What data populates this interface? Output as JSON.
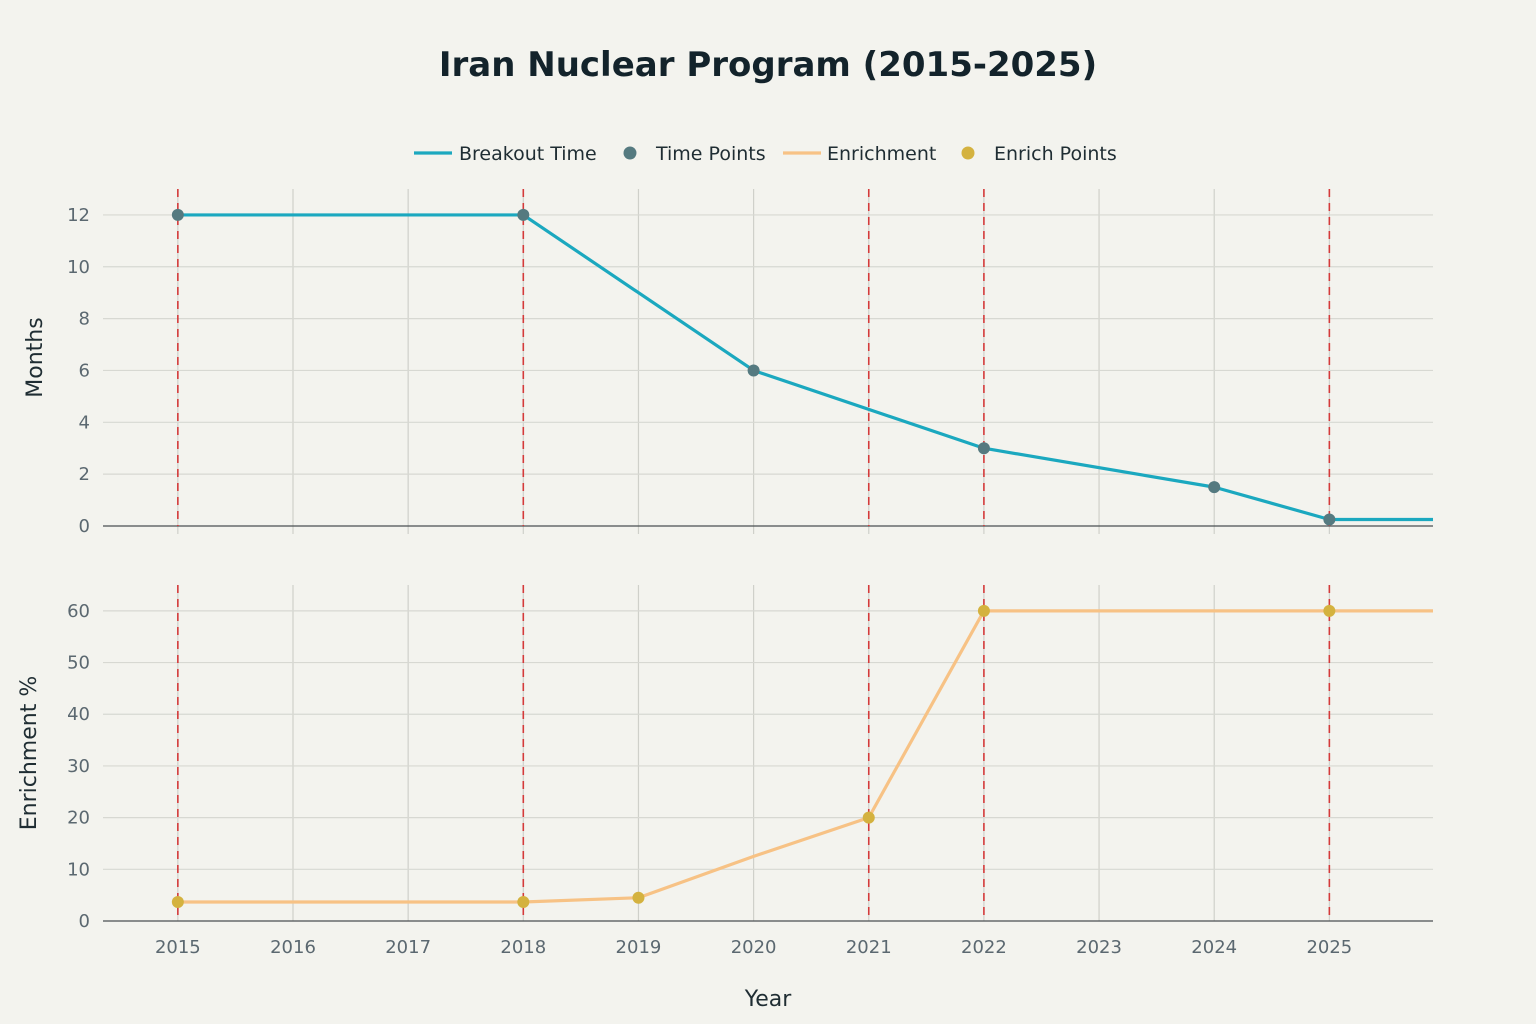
{
  "chart_data": {
    "type": "line",
    "title": "Iran Nuclear Program (2015-2025)",
    "xlabel": "Year",
    "x_ticks": [
      2015,
      2016,
      2017,
      2018,
      2019,
      2020,
      2021,
      2022,
      2023,
      2024,
      2025
    ],
    "xlim": [
      2014.35,
      2025.9
    ],
    "event_lines": [
      2015,
      2018,
      2021,
      2022,
      2025
    ],
    "legend": {
      "placement": "top-center",
      "items": [
        {
          "label": "Breakout Time",
          "kind": "line",
          "color": "#1ba8bf"
        },
        {
          "label": "Time Points",
          "kind": "marker",
          "color": "#557a80"
        },
        {
          "label": "Enrichment",
          "kind": "line",
          "color": "#f7c285"
        },
        {
          "label": "Enrich Points",
          "kind": "marker",
          "color": "#d4b23f"
        }
      ]
    },
    "panels": [
      {
        "ylabel": "Months",
        "ylim": [
          0,
          13
        ],
        "y_ticks": [
          0,
          2,
          4,
          6,
          8,
          10,
          12
        ],
        "series": [
          {
            "name": "Breakout Time",
            "color": "#1ba8bf",
            "x": [
              2015,
              2018,
              2020,
              2022,
              2024,
              2025,
              2025.9
            ],
            "y": [
              12,
              12,
              6,
              3,
              1.5,
              0.25,
              0.25
            ]
          },
          {
            "name": "Time Points",
            "color": "#557a80",
            "x": [
              2015,
              2018,
              2020,
              2022,
              2024,
              2025
            ],
            "y": [
              12,
              12,
              6,
              3,
              1.5,
              0.25
            ]
          }
        ]
      },
      {
        "ylabel": "Enrichment %",
        "ylim": [
          0,
          65
        ],
        "y_ticks": [
          0,
          10,
          20,
          30,
          40,
          50,
          60
        ],
        "series": [
          {
            "name": "Enrichment",
            "color": "#f7c285",
            "x": [
              2015,
              2018,
              2019,
              2020,
              2021,
              2022,
              2025,
              2025.9
            ],
            "y": [
              3.67,
              3.67,
              4.5,
              12.5,
              20,
              60,
              60,
              60
            ]
          },
          {
            "name": "Enrich Points",
            "color": "#d4b23f",
            "x": [
              2015,
              2018,
              2019,
              2021,
              2022,
              2025
            ],
            "y": [
              3.67,
              3.67,
              4.5,
              20,
              60,
              60
            ]
          }
        ]
      }
    ]
  }
}
